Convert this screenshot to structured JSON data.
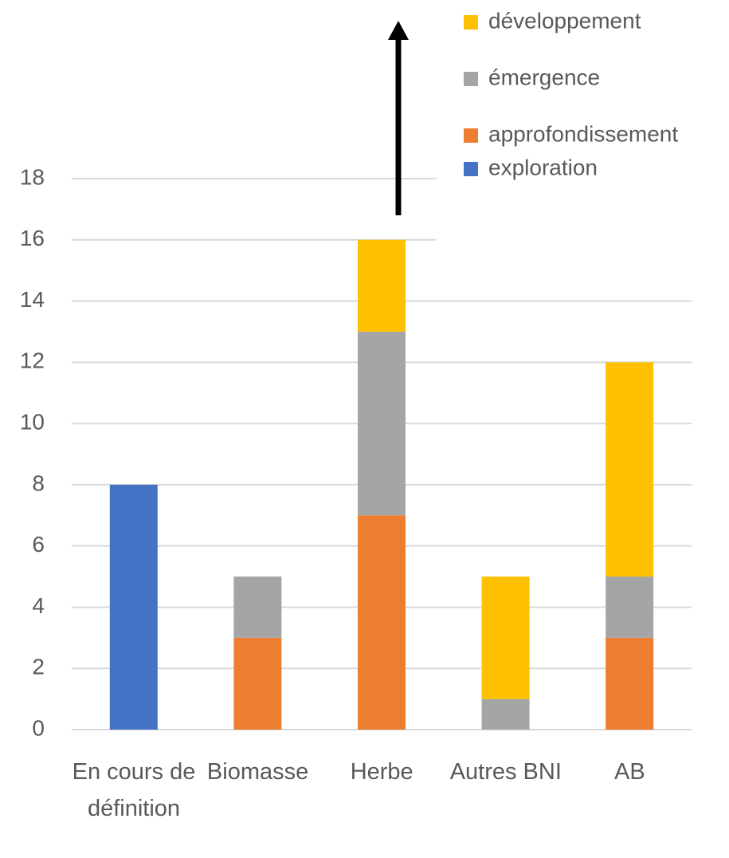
{
  "chart_data": {
    "type": "stacked_bar",
    "categories": [
      "En cours de définition",
      "Biomasse",
      "Herbe",
      "Autres BNI",
      "AB"
    ],
    "series": [
      {
        "name": "exploration",
        "color": "#4472c4",
        "values": [
          8,
          0,
          0,
          0,
          0
        ]
      },
      {
        "name": "approfondissement",
        "color": "#ed7d31",
        "values": [
          0,
          3,
          7,
          0,
          3
        ]
      },
      {
        "name": "émergence",
        "color": "#a5a5a5",
        "values": [
          0,
          2,
          6,
          1,
          2
        ]
      },
      {
        "name": "développement",
        "color": "#ffc000",
        "values": [
          0,
          0,
          3,
          4,
          7
        ]
      }
    ],
    "ylim": [
      0,
      18
    ],
    "yticks": [
      0,
      2,
      4,
      6,
      8,
      10,
      12,
      14,
      16,
      18
    ],
    "grid": true,
    "legend": "top-right"
  }
}
